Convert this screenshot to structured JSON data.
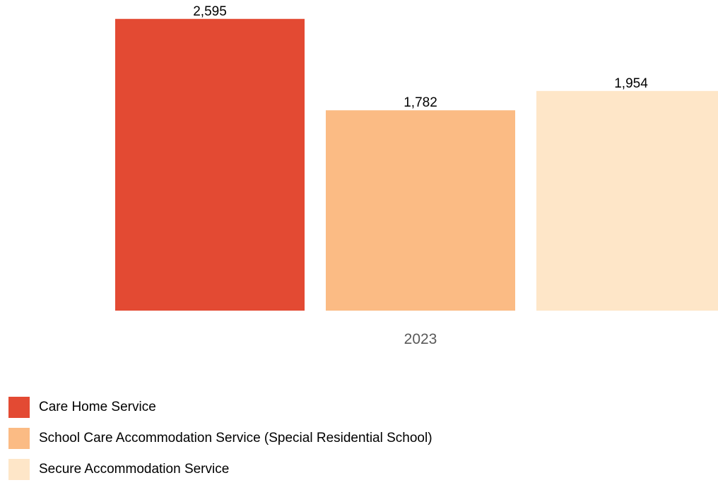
{
  "chart_data": {
    "type": "bar",
    "categories": [
      "2023"
    ],
    "series": [
      {
        "name": "Care Home Service",
        "values": [
          2595
        ],
        "color": "#e34a33",
        "label": "2,595"
      },
      {
        "name": "School Care Accommodation Service (Special Residential School)",
        "values": [
          1782
        ],
        "color": "#fbbb84",
        "label": "1,782"
      },
      {
        "name": "Secure Accommodation Service",
        "values": [
          1954
        ],
        "color": "#fee6c8",
        "label": "1,954"
      }
    ],
    "title": "",
    "xlabel": "",
    "ylabel": "",
    "ylim": [
      0,
      2650
    ],
    "grid": false,
    "legend_position": "bottom-left"
  }
}
